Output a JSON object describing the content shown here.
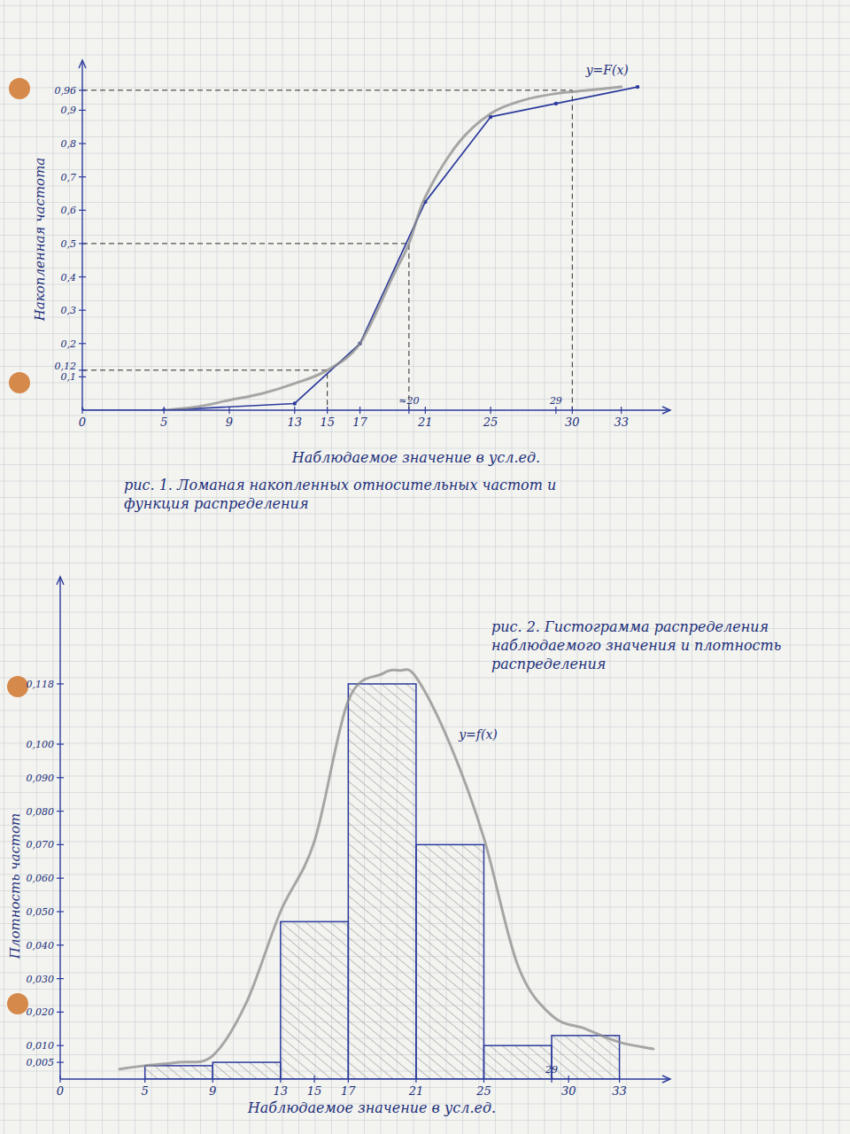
{
  "chart_data": [
    {
      "type": "line",
      "title": "рис. 1. Ломаная накопленных относительных частот и функция распределения",
      "x_label": "Наблюдаемое значение в усл.ед.",
      "y_label": "Накопленная частота",
      "xlim": [
        0,
        36
      ],
      "ylim": [
        0,
        1.05
      ],
      "xticks": [
        0,
        5,
        9,
        13,
        15,
        17,
        {
          "value": 20,
          "label": "≈20"
        },
        21,
        25,
        29,
        30,
        33
      ],
      "yticks": [
        {
          "value": 0.1,
          "label": "0,1"
        },
        {
          "value": 0.12,
          "label": "0,12"
        },
        {
          "value": 0.2,
          "label": "0,2"
        },
        {
          "value": 0.3,
          "label": "0,3"
        },
        {
          "value": 0.4,
          "label": "0,4"
        },
        {
          "value": 0.5,
          "label": "0,5"
        },
        {
          "value": 0.6,
          "label": "0,6"
        },
        {
          "value": 0.7,
          "label": "0,7"
        },
        {
          "value": 0.8,
          "label": "0,8"
        },
        {
          "value": 0.9,
          "label": "0,9"
        },
        {
          "value": 0.96,
          "label": "0,96"
        }
      ],
      "series": [
        {
          "color": "#2b3a9c",
          "marker": "dot",
          "line_style": "solid",
          "x": [
            0,
            5,
            13,
            17,
            21,
            25,
            29,
            34
          ],
          "values": [
            0,
            0,
            0.02,
            0.2,
            0.625,
            0.88,
            0.92,
            0.97
          ]
        },
        {
          "name": "y=F(x)",
          "color": "#8c8c8c",
          "line_style": "smooth",
          "x": [
            5,
            7,
            9,
            11,
            13,
            15,
            17,
            19,
            20,
            21,
            23,
            25,
            27,
            29,
            31,
            33
          ],
          "values": [
            0,
            0.01,
            0.03,
            0.05,
            0.08,
            0.12,
            0.2,
            0.4,
            0.5,
            0.64,
            0.8,
            0.89,
            0.93,
            0.95,
            0.96,
            0.97
          ]
        }
      ],
      "reference_lines": [
        {
          "x": 15,
          "y": 0.12
        },
        {
          "x": 20,
          "y": 0.5
        },
        {
          "x": 30,
          "y": 0.96
        }
      ]
    },
    {
      "type": "histogram",
      "title": "рис. 2. Гистограмма распределения наблюдаемого значения и плотность распределения",
      "x_label": "Наблюдаемое значение в усл.ед.",
      "y_label": "Плотность частот",
      "bins": [
        5,
        9,
        13,
        17,
        21,
        25,
        29,
        33
      ],
      "values": [
        0.004,
        0.005,
        0.047,
        0.118,
        0.07,
        0.01,
        0.013
      ],
      "color": "#2b3a9c",
      "xlim": [
        0,
        36
      ],
      "ylim": [
        0,
        0.15
      ],
      "xticks": [
        0,
        5,
        9,
        13,
        15,
        17,
        21,
        25,
        29,
        30,
        33
      ],
      "yticks": [
        {
          "value": 0.005,
          "label": "0,005"
        },
        {
          "value": 0.01,
          "label": "0,010"
        },
        {
          "value": 0.02,
          "label": "0,020"
        },
        {
          "value": 0.03,
          "label": "0,030"
        },
        {
          "value": 0.04,
          "label": "0,040"
        },
        {
          "value": 0.05,
          "label": "0,050"
        },
        {
          "value": 0.06,
          "label": "0,060"
        },
        {
          "value": 0.07,
          "label": "0,070"
        },
        {
          "value": 0.08,
          "label": "0,080"
        },
        {
          "value": 0.09,
          "label": "0,090"
        },
        {
          "value": 0.1,
          "label": "0,100"
        },
        {
          "value": 0.118,
          "label": "0,118"
        }
      ],
      "series": [
        {
          "name": "y=f(x)",
          "type": "line",
          "color": "#8c8c8c",
          "line_style": "smooth",
          "x": [
            3.5,
            5,
            7,
            9,
            11,
            13,
            15,
            17,
            19,
            20,
            21,
            23,
            25,
            27,
            29,
            31,
            33,
            35
          ],
          "values": [
            0.003,
            0.004,
            0.005,
            0.007,
            0.023,
            0.05,
            0.071,
            0.113,
            0.121,
            0.122,
            0.12,
            0.1,
            0.072,
            0.034,
            0.019,
            0.015,
            0.011,
            0.009
          ]
        }
      ]
    }
  ]
}
